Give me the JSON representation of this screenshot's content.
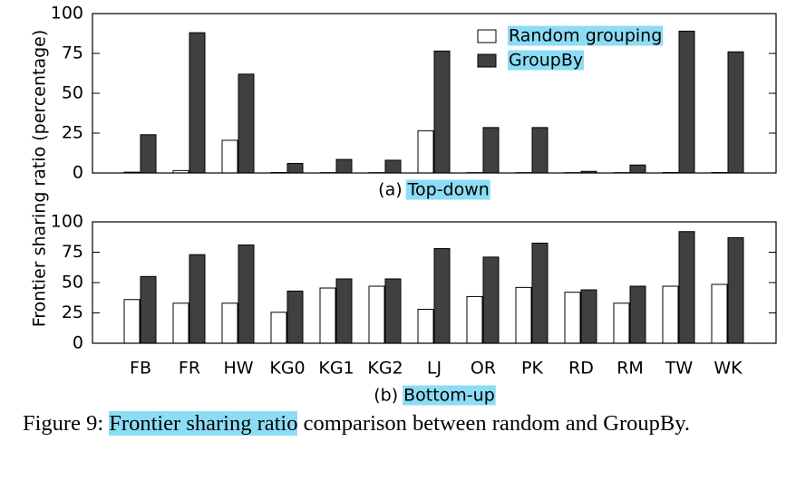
{
  "figure": {
    "ylabel": "Frontier sharing ratio (percentage)",
    "caption_label": "Figure 9:",
    "caption_highlight": "Frontier sharing ratio",
    "caption_rest": "comparison between random and GroupBy."
  },
  "chart_data": [
    {
      "type": "bar",
      "subtitle_label": "(a)",
      "subtitle": "Top-down",
      "series": [
        {
          "name": "Random grouping",
          "color": "#ffffff",
          "values": [
            0.5,
            1.5,
            20.5,
            0.3,
            0.2,
            0.2,
            26.5,
            0.2,
            0.2,
            0.2,
            0.2,
            0.3,
            0.3
          ]
        },
        {
          "name": "GroupBy",
          "color": "#404040",
          "values": [
            24,
            88,
            62,
            6,
            8.5,
            8,
            76.5,
            28.5,
            28.5,
            1,
            5,
            89,
            76
          ]
        }
      ],
      "ylim": [
        0,
        100
      ],
      "yticks": [
        0,
        25,
        50,
        75,
        100
      ],
      "legend": "top-right"
    },
    {
      "type": "bar",
      "subtitle_label": "(b)",
      "subtitle": "Bottom-up",
      "categories": [
        "FB",
        "FR",
        "HW",
        "KG0",
        "KG1",
        "KG2",
        "LJ",
        "OR",
        "PK",
        "RD",
        "RM",
        "TW",
        "WK"
      ],
      "series": [
        {
          "color": "#ffffff",
          "values": [
            36,
            33,
            33,
            25.5,
            45.5,
            47,
            28,
            38.5,
            46,
            42,
            33,
            47,
            48.5
          ]
        },
        {
          "color": "#404040",
          "values": [
            55,
            73,
            81,
            43,
            53,
            53,
            78,
            71,
            82.5,
            44,
            47,
            92,
            87
          ]
        }
      ],
      "ylim": [
        0,
        100
      ],
      "yticks": [
        0,
        25,
        50,
        75,
        100
      ]
    }
  ]
}
